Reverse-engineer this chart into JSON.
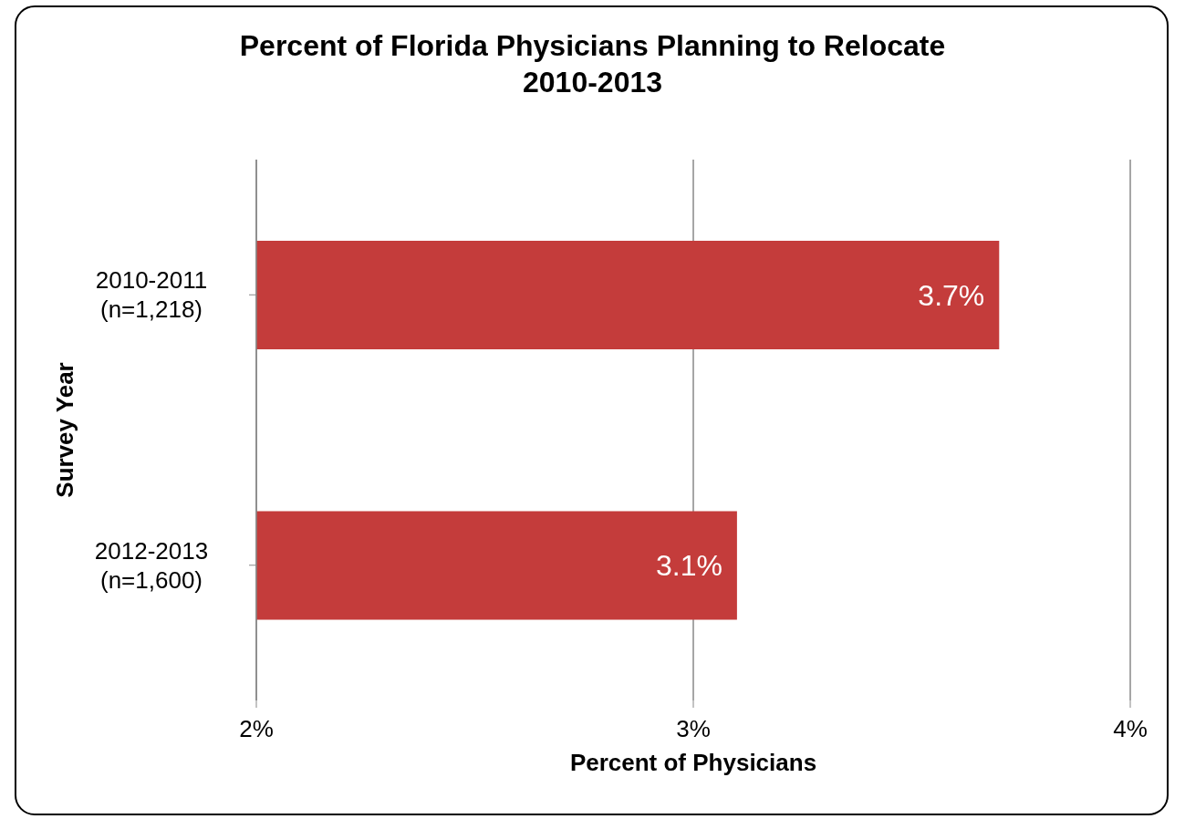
{
  "chart_data": {
    "type": "bar",
    "orientation": "horizontal",
    "title": "Percent of Florida Physicians Planning to Relocate\n2010-2013",
    "xlabel": "Percent of Physicians",
    "ylabel": "Survey Year",
    "categories": [
      "2010-2011 (n=1,218)",
      "2012-2013 (n=1,600)"
    ],
    "values": [
      3.7,
      3.1
    ],
    "value_labels": [
      "3.7%",
      "3.1%"
    ],
    "color": "#c43c3b",
    "xlim": [
      2,
      4
    ],
    "xticks": [
      {
        "value": 2,
        "label": "2%"
      },
      {
        "value": 3,
        "label": "3%"
      },
      {
        "value": 4,
        "label": "4%"
      }
    ],
    "grid": "x"
  }
}
